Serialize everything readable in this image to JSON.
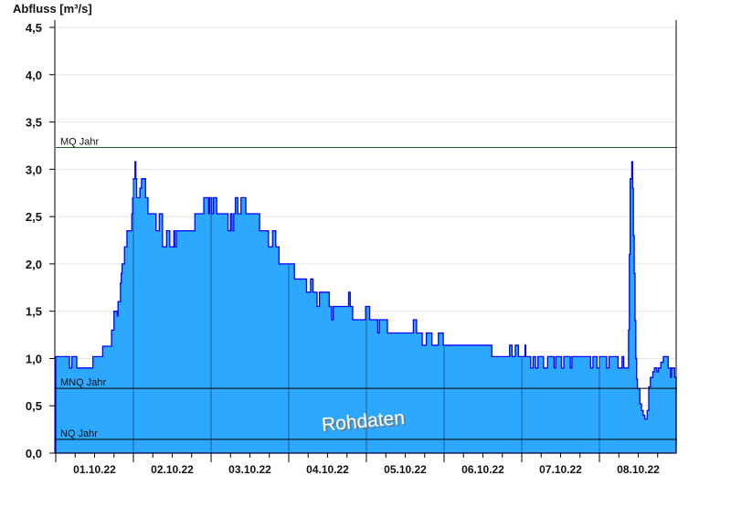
{
  "chart_data": {
    "type": "area",
    "ylabel": "Abfluss [m³/s]",
    "ylim": [
      0,
      4.5
    ],
    "yticks": [
      "0,0",
      "0,5",
      "1,0",
      "1,5",
      "2,0",
      "2,5",
      "3,0",
      "3,5",
      "4,0",
      "4,5"
    ],
    "xlim": [
      "01.10.22 00:00",
      "09.10.22 00:00"
    ],
    "xticks": [
      "01.10.22",
      "02.10.22",
      "03.10.22",
      "04.10.22",
      "05.10.22",
      "06.10.22",
      "07.10.22",
      "08.10.22"
    ],
    "grid": true,
    "step": true,
    "colors": {
      "fill": "#2ca8ff",
      "line": "#0000ff",
      "mq": "#1a6a1a",
      "ref": "#000000",
      "grid": "#e6e6e6",
      "dayline": "#1d5f8c"
    },
    "reference_lines": [
      {
        "label": "MQ Jahr",
        "value": 3.23
      },
      {
        "label": "MNQ Jahr",
        "value": 0.685
      },
      {
        "label": "NQ Jahr",
        "value": 0.145
      }
    ],
    "watermark": "Rohdaten",
    "series": [
      {
        "points": [
          [
            "01.10.22 00:00",
            1.02
          ],
          [
            "01.10.22 04:15",
            0.9
          ],
          [
            "01.10.22 05:00",
            1.02
          ],
          [
            "01.10.22 06:30",
            0.9
          ],
          [
            "01.10.22 11:30",
            1.02
          ],
          [
            "01.10.22 14:30",
            1.13
          ],
          [
            "01.10.22 17:15",
            1.3
          ],
          [
            "01.10.22 18:00",
            1.5
          ],
          [
            "01.10.22 19:00",
            1.45
          ],
          [
            "01.10.22 19:15",
            1.6
          ],
          [
            "01.10.22 20:00",
            1.8
          ],
          [
            "01.10.22 20:15",
            1.9
          ],
          [
            "01.10.22 20:30",
            2.0
          ],
          [
            "01.10.22 21:15",
            2.18
          ],
          [
            "01.10.22 22:00",
            2.35
          ],
          [
            "01.10.22 23:30",
            2.53
          ],
          [
            "01.10.22 23:45",
            2.7
          ],
          [
            "02.10.22 00:00",
            2.9
          ],
          [
            "02.10.22 00:30",
            3.08
          ],
          [
            "02.10.22 00:45",
            2.9
          ],
          [
            "02.10.22 01:00",
            2.7
          ],
          [
            "02.10.22 02:00",
            2.8
          ],
          [
            "02.10.22 02:30",
            2.9
          ],
          [
            "02.10.22 03:45",
            2.7
          ],
          [
            "02.10.22 04:30",
            2.53
          ],
          [
            "02.10.22 07:00",
            2.35
          ],
          [
            "02.10.22 08:00",
            2.53
          ],
          [
            "02.10.22 09:00",
            2.18
          ],
          [
            "02.10.22 10:15",
            2.35
          ],
          [
            "02.10.22 11:15",
            2.18
          ],
          [
            "02.10.22 12:30",
            2.35
          ],
          [
            "02.10.22 12:45",
            2.18
          ],
          [
            "02.10.22 13:15",
            2.35
          ],
          [
            "02.10.22 19:00",
            2.53
          ],
          [
            "02.10.22 21:45",
            2.7
          ],
          [
            "02.10.22 23:15",
            2.53
          ],
          [
            "02.10.22 23:30",
            2.7
          ],
          [
            "03.10.22 00:15",
            2.53
          ],
          [
            "03.10.22 00:45",
            2.7
          ],
          [
            "03.10.22 01:45",
            2.53
          ],
          [
            "03.10.22 05:15",
            2.35
          ],
          [
            "03.10.22 06:00",
            2.53
          ],
          [
            "03.10.22 06:30",
            2.35
          ],
          [
            "03.10.22 07:00",
            2.53
          ],
          [
            "03.10.22 07:30",
            2.7
          ],
          [
            "03.10.22 08:15",
            2.53
          ],
          [
            "03.10.22 09:15",
            2.7
          ],
          [
            "03.10.22 10:45",
            2.53
          ],
          [
            "03.10.22 15:00",
            2.35
          ],
          [
            "03.10.22 17:45",
            2.18
          ],
          [
            "03.10.22 19:00",
            2.35
          ],
          [
            "03.10.22 20:00",
            2.18
          ],
          [
            "03.10.22 21:00",
            2.0
          ],
          [
            "04.10.22 01:45",
            1.84
          ],
          [
            "04.10.22 05:30",
            1.7
          ],
          [
            "04.10.22 06:45",
            1.84
          ],
          [
            "04.10.22 07:30",
            1.7
          ],
          [
            "04.10.22 08:45",
            1.55
          ],
          [
            "04.10.22 09:30",
            1.7
          ],
          [
            "04.10.22 12:30",
            1.55
          ],
          [
            "04.10.22 13:15",
            1.41
          ],
          [
            "04.10.22 13:45",
            1.55
          ],
          [
            "04.10.22 18:30",
            1.7
          ],
          [
            "04.10.22 19:00",
            1.55
          ],
          [
            "04.10.22 19:45",
            1.41
          ],
          [
            "04.10.22 23:45",
            1.55
          ],
          [
            "05.10.22 01:00",
            1.41
          ],
          [
            "05.10.22 03:30",
            1.27
          ],
          [
            "05.10.22 04:00",
            1.41
          ],
          [
            "05.10.22 06:30",
            1.27
          ],
          [
            "05.10.22 14:30",
            1.41
          ],
          [
            "05.10.22 15:30",
            1.27
          ],
          [
            "05.10.22 17:15",
            1.14
          ],
          [
            "05.10.22 18:30",
            1.27
          ],
          [
            "05.10.22 20:15",
            1.14
          ],
          [
            "05.10.22 22:15",
            1.27
          ],
          [
            "05.10.22 23:45",
            1.14
          ],
          [
            "06.10.22 14:45",
            1.02
          ],
          [
            "06.10.22 20:15",
            1.14
          ],
          [
            "06.10.22 21:00",
            1.02
          ],
          [
            "06.10.22 22:00",
            1.14
          ],
          [
            "06.10.22 23:00",
            1.02
          ],
          [
            "07.10.22 01:00",
            1.14
          ],
          [
            "07.10.22 01:15",
            1.02
          ],
          [
            "07.10.22 02:45",
            0.9
          ],
          [
            "07.10.22 03:30",
            1.02
          ],
          [
            "07.10.22 04:15",
            0.9
          ],
          [
            "07.10.22 05:00",
            1.02
          ],
          [
            "07.10.22 06:45",
            0.9
          ],
          [
            "07.10.22 08:00",
            1.02
          ],
          [
            "07.10.22 10:00",
            0.9
          ],
          [
            "07.10.22 10:30",
            1.02
          ],
          [
            "07.10.22 12:15",
            0.9
          ],
          [
            "07.10.22 13:00",
            1.02
          ],
          [
            "07.10.22 15:00",
            0.9
          ],
          [
            "07.10.22 15:30",
            1.02
          ],
          [
            "07.10.22 21:15",
            0.9
          ],
          [
            "07.10.22 22:00",
            1.02
          ],
          [
            "07.10.22 23:15",
            0.9
          ],
          [
            "08.10.22 00:00",
            1.02
          ],
          [
            "08.10.22 02:15",
            0.9
          ],
          [
            "08.10.22 03:00",
            1.02
          ],
          [
            "08.10.22 05:45",
            0.9
          ],
          [
            "08.10.22 07:00",
            1.02
          ],
          [
            "08.10.22 07:30",
            0.9
          ],
          [
            "08.10.22 09:00",
            1.3
          ],
          [
            "08.10.22 09:15",
            2.1
          ],
          [
            "08.10.22 09:30",
            2.9
          ],
          [
            "08.10.22 10:00",
            3.08
          ],
          [
            "08.10.22 10:15",
            2.8
          ],
          [
            "08.10.22 10:30",
            2.3
          ],
          [
            "08.10.22 10:45",
            1.9
          ],
          [
            "08.10.22 11:00",
            1.4
          ],
          [
            "08.10.22 11:15",
            1.0
          ],
          [
            "08.10.22 11:30",
            0.78
          ],
          [
            "08.10.22 11:45",
            0.68
          ],
          [
            "08.10.22 12:30",
            0.52
          ],
          [
            "08.10.22 13:00",
            0.45
          ],
          [
            "08.10.22 13:30",
            0.4
          ],
          [
            "08.10.22 14:00",
            0.36
          ],
          [
            "08.10.22 14:45",
            0.45
          ],
          [
            "08.10.22 15:15",
            0.7
          ],
          [
            "08.10.22 15:45",
            0.8
          ],
          [
            "08.10.22 16:30",
            0.86
          ],
          [
            "08.10.22 17:00",
            0.9
          ],
          [
            "08.10.22 17:45",
            0.86
          ],
          [
            "08.10.22 18:15",
            0.9
          ],
          [
            "08.10.22 19:00",
            0.96
          ],
          [
            "08.10.22 19:45",
            1.02
          ],
          [
            "08.10.22 21:15",
            0.9
          ],
          [
            "08.10.22 22:00",
            0.8
          ],
          [
            "08.10.22 22:15",
            0.9
          ],
          [
            "08.10.22 23:15",
            0.8
          ]
        ]
      }
    ]
  }
}
